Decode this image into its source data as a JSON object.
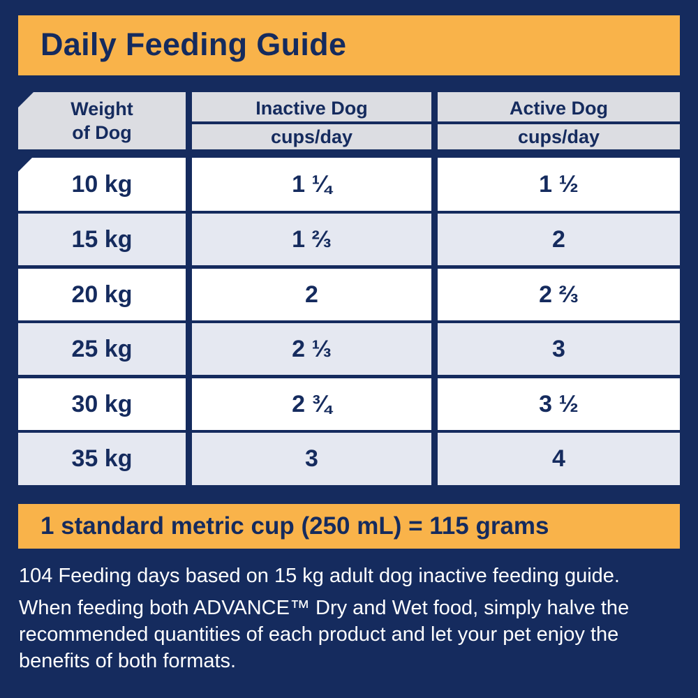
{
  "title": "Daily Feeding Guide",
  "table": {
    "headers": {
      "weight_line1": "Weight",
      "weight_line2": "of Dog",
      "inactive": "Inactive Dog",
      "inactive_unit": "cups/day",
      "active": "Active Dog",
      "active_unit": "cups/day"
    },
    "rows": [
      {
        "weight": "10 kg",
        "inactive": "1 ¼",
        "active": "1 ½"
      },
      {
        "weight": "15 kg",
        "inactive": "1 ⅔",
        "active": "2"
      },
      {
        "weight": "20 kg",
        "inactive": "2",
        "active": "2 ⅔"
      },
      {
        "weight": "25 kg",
        "inactive": "2 ⅓",
        "active": "3"
      },
      {
        "weight": "30 kg",
        "inactive": "2 ¾",
        "active": "3 ½"
      },
      {
        "weight": "35 kg",
        "inactive": "3",
        "active": "4"
      }
    ]
  },
  "cup_note": "1 standard metric cup (250 mL) = 115 grams",
  "notes": {
    "line1": "104 Feeding days based on 15 kg adult dog inactive feeding guide.",
    "line2": "When feeding both ADVANCE™ Dry and Wet food, simply halve the recommended quantities of each product and let your pet enjoy the benefits of both formats."
  },
  "colors": {
    "background": "#152b5e",
    "accent": "#f9b34a",
    "header_cell": "#dcdde2",
    "row_white": "#ffffff",
    "row_tint": "#e5e8f1"
  }
}
